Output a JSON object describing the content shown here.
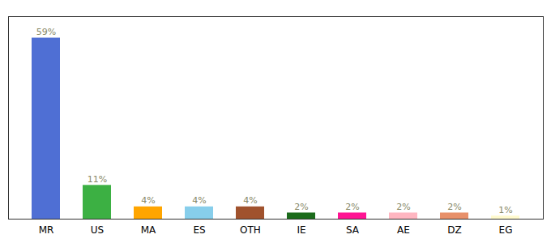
{
  "chart_data": {
    "type": "bar",
    "categories": [
      "MR",
      "US",
      "MA",
      "ES",
      "OTH",
      "IE",
      "SA",
      "AE",
      "DZ",
      "EG"
    ],
    "values": [
      59,
      11,
      4,
      4,
      4,
      2,
      2,
      2,
      2,
      1
    ],
    "value_labels": [
      "59%",
      "11%",
      "4%",
      "4%",
      "4%",
      "2%",
      "2%",
      "2%",
      "2%",
      "1%"
    ],
    "colors": [
      "#4F6FD4",
      "#3CB043",
      "#FFA500",
      "#87CEEB",
      "#A0522D",
      "#1B6B1B",
      "#FF1493",
      "#FFB6C1",
      "#E8906A",
      "#FFFACD"
    ],
    "ylim": [
      0,
      66
    ],
    "data_labels": true,
    "tick_labels": "x",
    "grid": false
  }
}
